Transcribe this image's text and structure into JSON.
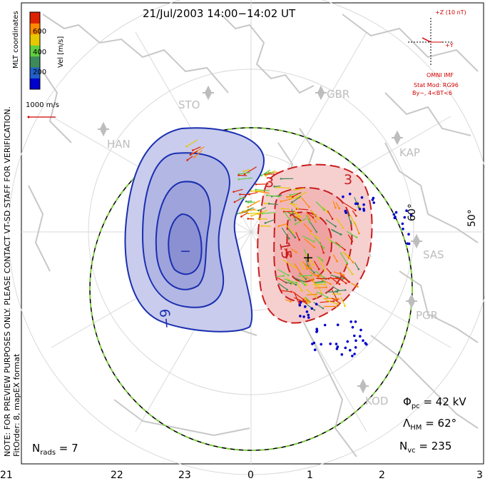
{
  "title": "21/Jul/2003 14:00−14:02 UT",
  "side_note_1": "NOTE: FOR PREVIEW PURPOSES ONLY. PLEASE CONTACT VT-SD STAFF FOR VERIFICATION.",
  "side_note_2": "FitOrder: 8, mapEX format",
  "coords_label": "MLT coordinates",
  "colorbar": {
    "label": "Vel [m/s]",
    "ticks": [
      "600",
      "400",
      "200"
    ],
    "colors": [
      "#0000cc",
      "#1f5fc8",
      "#3d8a5a",
      "#5fcf3f",
      "#e6c800",
      "#ff8800",
      "#dd2200"
    ]
  },
  "scale_vector": "1000 m/s",
  "imf": {
    "scale": "+Z (10 nT)",
    "y_label": "+Y",
    "source": "OMNI IMF",
    "model": "Stat Mod: RG96",
    "condition": "By−, 4<BT<6"
  },
  "stations": [
    "STO",
    "GBR",
    "HAN",
    "KAP",
    "SAS",
    "PGR",
    "KOD"
  ],
  "lat_labels": [
    "60°",
    "50°"
  ],
  "mlt_labels": [
    "21",
    "22",
    "23",
    "0",
    "1",
    "2",
    "3"
  ],
  "contour_labels": {
    "neg": "−9",
    "neg_center": "−",
    "pos_3a": "3",
    "pos_3b": "3",
    "pos_15": "15",
    "pos_center": "+"
  },
  "stats": {
    "phi_pc_symbol": "Φ",
    "phi_pc_sub": "pc",
    "phi_pc_value": " = 42 kV",
    "lambda_hm_symbol": "Λ",
    "lambda_hm_sub": "HM",
    "lambda_hm_value": " = 62°",
    "n_vc_symbol": "N",
    "n_vc_sub": "vc",
    "n_vc_value": " = 235",
    "n_rads_symbol": "N",
    "n_rads_sub": "rads",
    "n_rads_value": " = 7"
  },
  "colors": {
    "negative_contour": "#1a2fb0",
    "negative_fill": "#c9ccec",
    "positive_contour": "#c81e1e",
    "positive_fill": "#f6cfcf",
    "station": "#bdbdbd",
    "grid": "#d9d9d9",
    "coast": "#c8c8c8",
    "imf_red": "#d00000"
  }
}
